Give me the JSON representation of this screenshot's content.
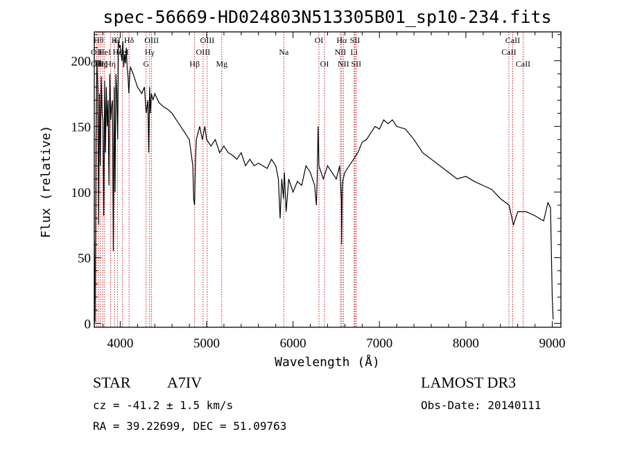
{
  "chart_data": {
    "type": "line",
    "title": "spec-56669-HD024803N513305B01_sp10-234.fits",
    "xlabel": "Wavelength (Å)",
    "ylabel": "Flux (relative)",
    "xlim": [
      3700,
      9100
    ],
    "ylim": [
      -3,
      222
    ],
    "xticks": [
      4000,
      5000,
      6000,
      7000,
      8000,
      9000
    ],
    "yticks": [
      0,
      50,
      100,
      150,
      200
    ],
    "series": [
      {
        "x": [
          3700,
          3710,
          3720,
          3730,
          3740,
          3750,
          3760,
          3770,
          3780,
          3790,
          3800,
          3810,
          3820,
          3830,
          3840,
          3850,
          3860,
          3870,
          3880,
          3890,
          3900,
          3910,
          3920,
          3930,
          3940,
          3950,
          3960,
          3970,
          3980,
          3990,
          4000,
          4010,
          4020,
          4030,
          4040,
          4050,
          4060,
          4070,
          4080,
          4090,
          4100,
          4110,
          4120,
          4150,
          4200,
          4250,
          4280,
          4300,
          4320,
          4330,
          4340,
          4350,
          4360,
          4380,
          4400,
          4450,
          4500,
          4550,
          4600,
          4650,
          4700,
          4750,
          4800,
          4820,
          4840,
          4850,
          4860,
          4870,
          4880,
          4900,
          4920,
          4950,
          4980,
          5000,
          5050,
          5100,
          5150,
          5200,
          5250,
          5300,
          5350,
          5400,
          5450,
          5500,
          5550,
          5600,
          5650,
          5700,
          5750,
          5800,
          5830,
          5850,
          5870,
          5890,
          5900,
          5910,
          5920,
          5950,
          6000,
          6050,
          6100,
          6150,
          6200,
          6250,
          6270,
          6280,
          6290,
          6300,
          6350,
          6400,
          6450,
          6500,
          6540,
          6550,
          6560,
          6563,
          6570,
          6580,
          6600,
          6650,
          6700,
          6750,
          6800,
          6850,
          6900,
          6950,
          7000,
          7050,
          7100,
          7150,
          7200,
          7300,
          7400,
          7500,
          7600,
          7700,
          7800,
          7900,
          8000,
          8100,
          8200,
          8300,
          8400,
          8500,
          8550,
          8600,
          8700,
          8800,
          8850,
          8900,
          8950,
          8980,
          9000,
          9010
        ],
        "y": [
          63,
          1,
          140,
          200,
          180,
          75,
          175,
          120,
          188,
          160,
          155,
          82,
          185,
          130,
          180,
          150,
          170,
          105,
          190,
          155,
          165,
          170,
          55,
          180,
          100,
          190,
          175,
          140,
          215,
          210,
          212,
          205,
          200,
          215,
          195,
          205,
          198,
          210,
          195,
          188,
          175,
          190,
          195,
          190,
          180,
          175,
          180,
          160,
          170,
          130,
          180,
          160,
          175,
          170,
          175,
          168,
          165,
          163,
          160,
          155,
          150,
          145,
          140,
          130,
          120,
          95,
          90,
          120,
          140,
          145,
          150,
          140,
          150,
          140,
          135,
          140,
          130,
          135,
          130,
          128,
          125,
          130,
          120,
          125,
          120,
          122,
          120,
          118,
          125,
          120,
          110,
          80,
          110,
          95,
          115,
          100,
          85,
          110,
          100,
          108,
          105,
          120,
          115,
          105,
          90,
          110,
          150,
          120,
          110,
          120,
          115,
          110,
          120,
          105,
          95,
          60,
          105,
          110,
          115,
          120,
          125,
          130,
          138,
          140,
          145,
          150,
          148,
          155,
          152,
          155,
          150,
          148,
          140,
          130,
          125,
          120,
          115,
          110,
          112,
          108,
          105,
          102,
          95,
          90,
          75,
          85,
          85,
          82,
          80,
          78,
          92,
          88,
          20,
          3
        ],
        "color": "#000000"
      }
    ],
    "lines": [
      {
        "wl": 3727,
        "labels": [
          "",
          "OII",
          "OII"
        ]
      },
      {
        "wl": 3750,
        "labels": [
          "Hθ",
          "",
          ""
        ]
      },
      {
        "wl": 3771,
        "labels": [
          "",
          "",
          "Hη"
        ]
      },
      {
        "wl": 3798,
        "labels": [
          "",
          "",
          "Hζ"
        ]
      },
      {
        "wl": 3820,
        "labels": [
          "",
          "HeI",
          ""
        ]
      },
      {
        "wl": 3889,
        "labels": [
          "",
          "",
          "Hη"
        ]
      },
      {
        "wl": 3934,
        "labels": [
          "K",
          "",
          ""
        ]
      },
      {
        "wl": 3968,
        "labels": [
          "H",
          "Hε",
          ""
        ]
      },
      {
        "wl": 4026,
        "labels": [
          "",
          "HeI",
          ""
        ]
      },
      {
        "wl": 4102,
        "labels": [
          "Hδ",
          "",
          ""
        ]
      },
      {
        "wl": 4300,
        "labels": [
          "",
          "",
          "G"
        ]
      },
      {
        "wl": 4341,
        "labels": [
          "",
          "Hγ",
          ""
        ]
      },
      {
        "wl": 4363,
        "labels": [
          "OIII",
          "",
          ""
        ]
      },
      {
        "wl": 4861,
        "labels": [
          "",
          "",
          "Hβ"
        ]
      },
      {
        "wl": 4959,
        "labels": [
          "",
          "OIII",
          ""
        ]
      },
      {
        "wl": 5007,
        "labels": [
          "OIII",
          "",
          ""
        ]
      },
      {
        "wl": 5175,
        "labels": [
          "",
          "",
          "Mg"
        ]
      },
      {
        "wl": 5893,
        "labels": [
          "",
          "Na",
          ""
        ]
      },
      {
        "wl": 6300,
        "labels": [
          "OI",
          "",
          ""
        ]
      },
      {
        "wl": 6364,
        "labels": [
          "",
          "",
          "OI"
        ]
      },
      {
        "wl": 6548,
        "labels": [
          "",
          "NII",
          ""
        ]
      },
      {
        "wl": 6563,
        "labels": [
          "Hα",
          "",
          ""
        ]
      },
      {
        "wl": 6583,
        "labels": [
          "",
          "",
          "NII"
        ]
      },
      {
        "wl": 6707,
        "labels": [
          "",
          "Li",
          ""
        ]
      },
      {
        "wl": 6716,
        "labels": [
          "SII",
          "",
          ""
        ]
      },
      {
        "wl": 6731,
        "labels": [
          "",
          "",
          "SII"
        ]
      },
      {
        "wl": 8498,
        "labels": [
          "",
          "CaII",
          ""
        ]
      },
      {
        "wl": 8542,
        "labels": [
          "CaII",
          "",
          ""
        ]
      },
      {
        "wl": 8662,
        "labels": [
          "",
          "",
          "CaII"
        ]
      }
    ]
  },
  "footer": {
    "object_type": "STAR",
    "subclass": "A7IV",
    "survey": "LAMOST DR3",
    "cz": "cz = -41.2 ± 1.5 km/s",
    "obs_date": "Obs-Date: 20140111",
    "coords": "RA =  39.22699, DEC =  51.09763"
  }
}
